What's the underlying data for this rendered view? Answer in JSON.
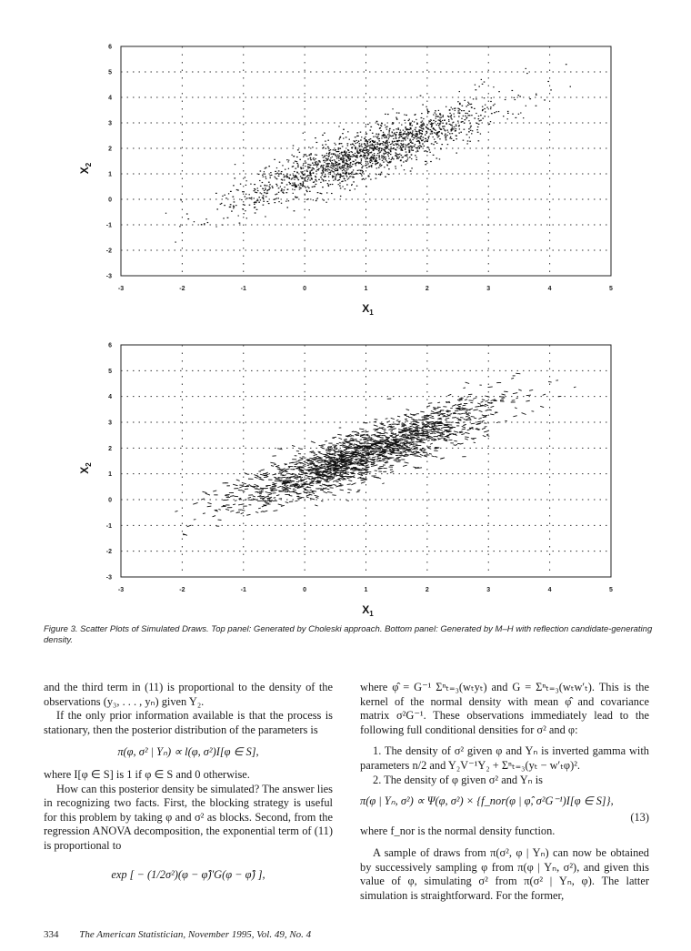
{
  "plots": [
    {
      "id": "top",
      "xlabel": "X",
      "xlabel_sub": "1",
      "ylabel": "X",
      "ylabel_sub": "2",
      "xticks": [
        "-3",
        "-2",
        "-1",
        "0",
        "1",
        "2",
        "3",
        "4",
        "5"
      ],
      "yticks": [
        "6",
        "5",
        "4",
        "3",
        "2",
        "1",
        "0",
        "-1",
        "-2",
        "-3"
      ]
    },
    {
      "id": "bottom",
      "xlabel": "X",
      "xlabel_sub": "1",
      "ylabel": "X",
      "ylabel_sub": "2",
      "xticks": [
        "-3",
        "-2",
        "-1",
        "0",
        "1",
        "2",
        "3",
        "4",
        "5"
      ],
      "yticks": [
        "6",
        "5",
        "4",
        "3",
        "2",
        "1",
        "0",
        "-1",
        "-2",
        "-3"
      ]
    }
  ],
  "chart_data": [
    {
      "type": "scatter",
      "title": "",
      "xlabel": "X1",
      "ylabel": "X2",
      "xlim": [
        -3,
        5
      ],
      "ylim": [
        -3,
        6
      ],
      "grid": "dotted",
      "distribution": {
        "mean_x": 1.0,
        "mean_y": 1.8,
        "sd_x": 1.05,
        "sd_y": 1.0,
        "correlation": 0.88,
        "n_points": 1800
      }
    },
    {
      "type": "scatter",
      "title": "",
      "xlabel": "X1",
      "ylabel": "X2",
      "xlim": [
        -3,
        5
      ],
      "ylim": [
        -3,
        6
      ],
      "grid": "dotted",
      "distribution": {
        "mean_x": 1.0,
        "mean_y": 1.8,
        "sd_x": 1.05,
        "sd_y": 1.0,
        "correlation": 0.88,
        "n_points": 1800
      }
    }
  ],
  "caption": {
    "text": "Figure 3.  Scatter Plots of Simulated Draws. Top panel: Generated by Choleski approach. Bottom panel: Generated by M–H with reflection candidate-generating density."
  },
  "left_column": {
    "p1": "and the third term in (11) is proportional to the density of the observations (y₃, . . . , yₙ) given Y₂.",
    "p2": "If the only prior information available is that the process is stationary, then the posterior distribution of the parameters is",
    "eq1": "π(φ, σ² | Yₙ) ∝ l(φ, σ²)I[φ ∈ S],",
    "p3": "where I[φ ∈ S] is 1 if φ ∈ S and 0 otherwise.",
    "p4": "How can this posterior density be simulated? The answer lies in recognizing two facts. First, the blocking strategy is useful for this problem by taking φ and σ² as blocks. Second, from the regression ANOVA decomposition, the exponential term of (11) is proportional to",
    "eq2": "exp [ − (1/2σ²)(φ − φ̂)′G(φ − φ̂) ],"
  },
  "right_column": {
    "p1": "where φ̂ = G⁻¹ Σⁿₜ₌₃(wₜyₜ) and G = Σⁿₜ₌₃(wₜw′ₜ). This is the kernel of the normal density with mean φ̂ and covariance matrix σ²G⁻¹. These observations immediately lead to the following full conditional densities for σ² and φ:",
    "item1": "1. The density of σ² given φ and Yₙ is inverted gamma with parameters n/2 and Y₂V⁻¹Y₂ + Σⁿₜ₌₃(yₜ − w′ₜφ)².",
    "item2": "2. The density of φ given σ² and Yₙ is",
    "eq3": "π(φ | Yₙ, σ²) ∝ Ψ(φ, σ²) × {f_nor(φ | φ̂, σ²G⁻¹)I[φ ∈ S]},",
    "eq3_label": "(13)",
    "p2": "where f_nor is the normal density function.",
    "p3": "A sample of draws from π(σ², φ | Yₙ) can now be obtained by successively sampling φ from π(φ | Yₙ, σ²), and given this value of φ, simulating σ² from π(σ² | Yₙ, φ). The latter simulation is straightforward. For the former,"
  },
  "footer": {
    "page": "334",
    "journal": "The American Statistician, November 1995, Vol. 49, No. 4"
  }
}
